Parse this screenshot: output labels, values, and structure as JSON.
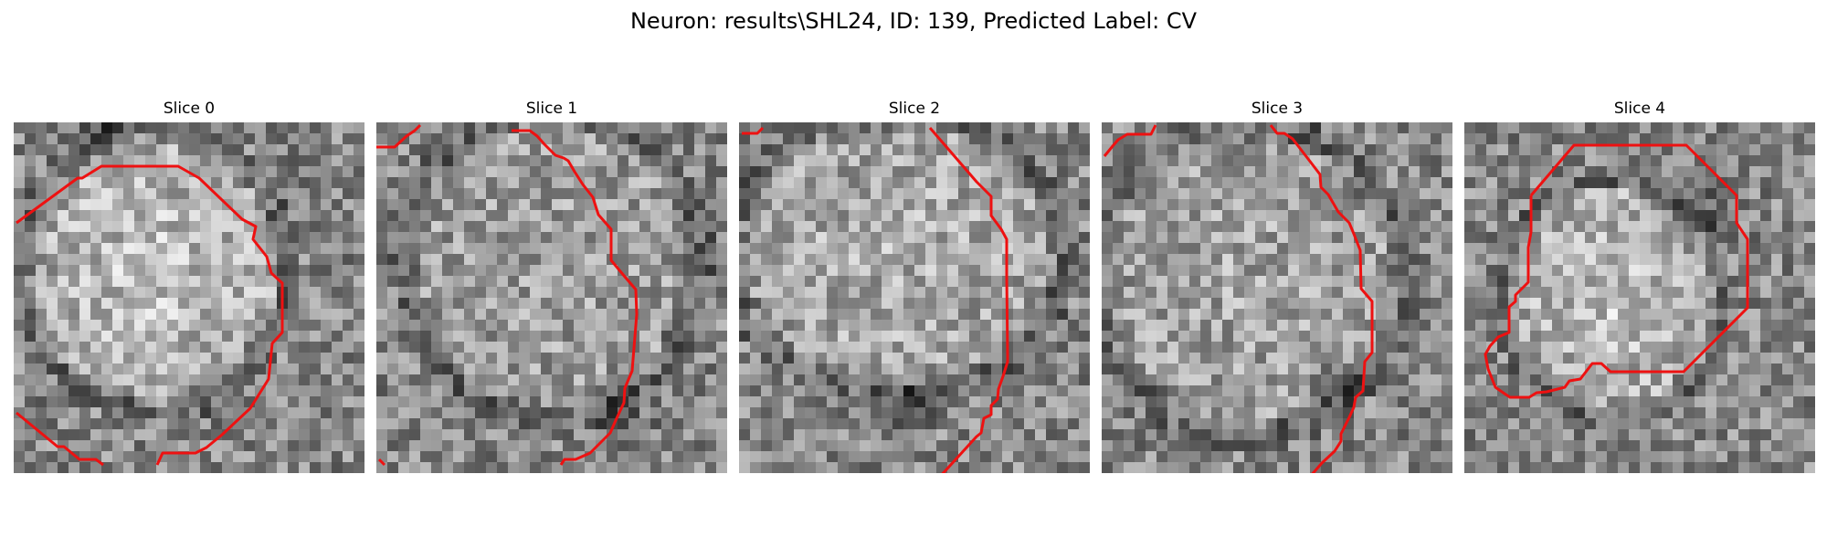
{
  "figure": {
    "title": "Neuron: results\\SHL24, ID: 139, Predicted Label: CV"
  },
  "panels": [
    {
      "title": "Slice 0"
    },
    {
      "title": "Slice 1"
    },
    {
      "title": "Slice 2"
    },
    {
      "title": "Slice 3"
    },
    {
      "title": "Slice 4"
    }
  ],
  "colors": {
    "contour": "#ee1111",
    "background": "#ffffff"
  }
}
